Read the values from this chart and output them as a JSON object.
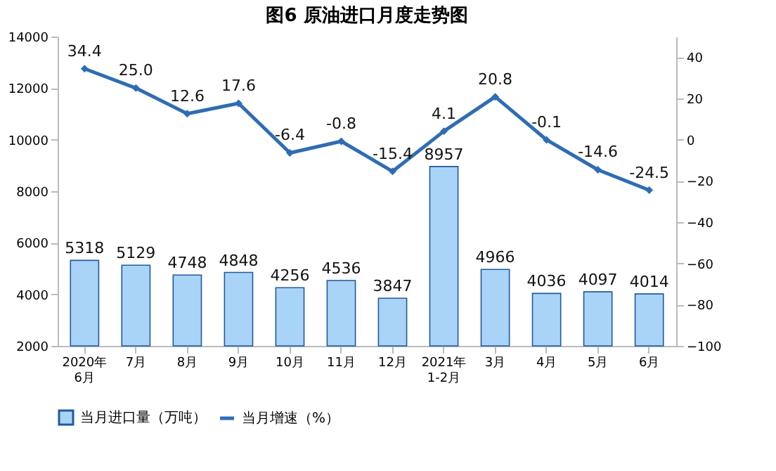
{
  "chart_data": {
    "type": "bar",
    "title": "图6  原油进口月度走势图",
    "categories": [
      "2020年\n6月",
      "7月",
      "8月",
      "9月",
      "10月",
      "11月",
      "12月",
      "2021年\n1-2月",
      "3月",
      "4月",
      "5月",
      "6月"
    ],
    "series": [
      {
        "name": "当月进口量（万吨）",
        "color": "#a9d4f7",
        "values": [
          5318,
          5129,
          4748,
          4848,
          4256,
          4536,
          3847,
          8957,
          4966,
          4036,
          4097,
          4014
        ]
      },
      {
        "name": "当月增速（%）",
        "type": "line",
        "axis": "y2",
        "color": "#2e6db4",
        "values": [
          34.4,
          25.0,
          12.6,
          17.6,
          -6.4,
          -0.8,
          -15.4,
          4.1,
          20.8,
          -0.1,
          -14.6,
          -24.5
        ],
        "value_labels": [
          "34.4",
          "25.0",
          "12.6",
          "17.6",
          "-6.4",
          "-0.8",
          "-15.4",
          "4.1",
          "20.8",
          "-0.1",
          "-14.6",
          "-24.5"
        ]
      }
    ],
    "ylim": [
      2000,
      14000
    ],
    "yticks": [
      2000,
      4000,
      6000,
      8000,
      10000,
      12000,
      14000
    ],
    "y2lim": [
      -100,
      50
    ],
    "y2ticks": [
      -100,
      -80,
      -60,
      -40,
      -20,
      0,
      20,
      40
    ],
    "data_labels": true,
    "legend": "bottom",
    "marker": "diamond",
    "grid": false
  }
}
